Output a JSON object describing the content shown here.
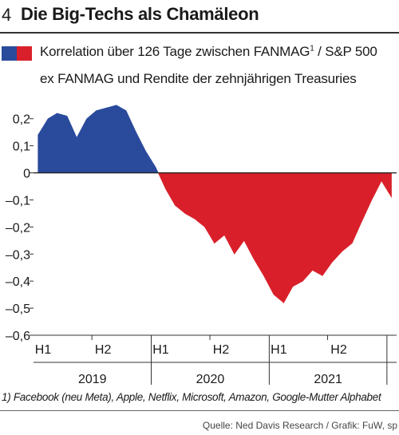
{
  "header": {
    "figure_number": "4",
    "title": "Die Big-Techs als Chamäleon"
  },
  "legend": {
    "line1_text": "Korrelation über 126 Tage zwischen FANMAG",
    "line1_sup": "1",
    "line1_rest": " / S&P 500",
    "line2_text": "ex FANMAG und Rendite der zehnjährigen Treasuries",
    "positive_color": "#2a4a9c",
    "negative_color": "#d9202a"
  },
  "footnote": "1) Facebook (neu Meta), Apple, Netflix, Microsoft, Amazon, Google-Mutter Alphabet",
  "source": "Quelle: Ned Davis Research / Grafik: FuW, sp",
  "chart_data": {
    "type": "area",
    "title": "",
    "xlabel": "",
    "ylabel": "",
    "ylim": [
      -0.6,
      0.27
    ],
    "yticks": [
      0.2,
      0.1,
      0,
      -0.1,
      -0.2,
      -0.3,
      -0.4,
      -0.5,
      -0.6
    ],
    "ytick_labels": [
      "0,2",
      "0,1",
      "0",
      "–0,1",
      "–0,2",
      "–0,3",
      "–0,4",
      "–0,5",
      "–0,6"
    ],
    "x_half_labels": [
      "H1",
      "H2",
      "H1",
      "H2",
      "H1",
      "H2"
    ],
    "x_year_labels": [
      "2019",
      "2020",
      "2021"
    ],
    "x_range": [
      "2019-01-01",
      "2022-01-31"
    ],
    "grid": false,
    "x": [
      "2019-01",
      "2019-02",
      "2019-03",
      "2019-04",
      "2019-05",
      "2019-06",
      "2019-07",
      "2019-08",
      "2019-09",
      "2019-10",
      "2019-11",
      "2019-12",
      "2020-01",
      "2020-02",
      "2020-03",
      "2020-04",
      "2020-05",
      "2020-06",
      "2020-07",
      "2020-08",
      "2020-09",
      "2020-10",
      "2020-11",
      "2020-12",
      "2021-01",
      "2021-02",
      "2021-03",
      "2021-04",
      "2021-05",
      "2021-06",
      "2021-07",
      "2021-08",
      "2021-09",
      "2021-10",
      "2021-11",
      "2021-12",
      "2022-01"
    ],
    "values": [
      0.14,
      0.2,
      0.22,
      0.21,
      0.13,
      0.2,
      0.23,
      0.24,
      0.25,
      0.23,
      0.15,
      0.08,
      0.02,
      -0.06,
      -0.12,
      -0.15,
      -0.17,
      -0.2,
      -0.26,
      -0.23,
      -0.3,
      -0.25,
      -0.32,
      -0.38,
      -0.45,
      -0.48,
      -0.42,
      -0.4,
      -0.36,
      -0.38,
      -0.33,
      -0.29,
      -0.26,
      -0.18,
      -0.1,
      -0.03,
      -0.09
    ]
  }
}
